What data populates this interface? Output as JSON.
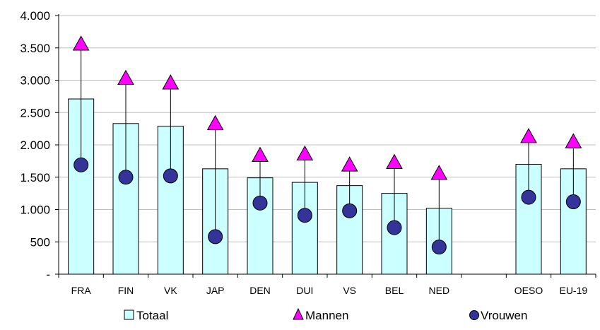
{
  "chart_data": {
    "type": "bar",
    "categories": [
      "FRA",
      "FIN",
      "VK",
      "JAP",
      "DEN",
      "DUI",
      "VS",
      "BEL",
      "NED",
      "",
      "OESO",
      "EU-19"
    ],
    "series": [
      {
        "name": "Totaal",
        "kind": "bar",
        "values": [
          2710,
          2330,
          2290,
          1630,
          1490,
          1420,
          1370,
          1250,
          1020,
          null,
          1700,
          1630
        ]
      },
      {
        "name": "Mannen",
        "kind": "marker",
        "marker": "triangle",
        "values": [
          3560,
          3030,
          2960,
          2330,
          1840,
          1860,
          1690,
          1730,
          1560,
          null,
          2130,
          2050
        ]
      },
      {
        "name": "Vrouwen",
        "kind": "marker",
        "marker": "circle",
        "values": [
          1690,
          1500,
          1520,
          580,
          1100,
          910,
          980,
          720,
          420,
          null,
          1190,
          1120
        ]
      }
    ],
    "y_ticks": [
      "-",
      "500",
      "1.000",
      "1.500",
      "2.000",
      "2.500",
      "3.000",
      "3.500",
      "4.000"
    ],
    "ylim": [
      0,
      4000
    ],
    "grid": true,
    "legend_position": "bottom",
    "colors": {
      "bar_fill": "#ccffff",
      "triangle": "#ff00ff",
      "circle": "#333399",
      "grid": "#c0c0c0"
    }
  }
}
